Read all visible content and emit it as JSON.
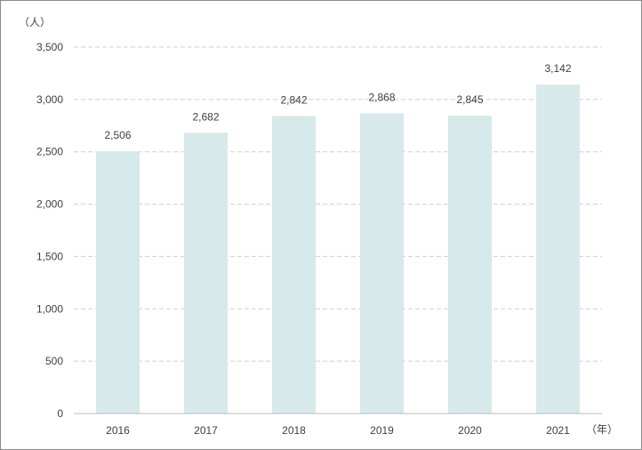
{
  "chart_data": {
    "type": "bar",
    "categories": [
      "2016",
      "2017",
      "2018",
      "2019",
      "2020",
      "2021"
    ],
    "values": [
      2506,
      2682,
      2842,
      2868,
      2845,
      3142
    ],
    "data_labels": [
      "2,506",
      "2,682",
      "2,842",
      "2,868",
      "2,845",
      "3,142"
    ],
    "ylim": [
      0,
      3500
    ],
    "y_ticks": [
      0,
      500,
      1000,
      1500,
      2000,
      2500,
      3000,
      3500
    ],
    "y_tick_labels": [
      "0",
      "500",
      "1,000",
      "1,500",
      "2,000",
      "2,500",
      "3,000",
      "3,500"
    ],
    "y_unit": "（人）",
    "x_unit": "（年）",
    "grid": "horizontal-dashed",
    "bar_color": "#d7e9ea",
    "grid_color": "#cfcfcf",
    "axis_color": "#bdbdbd",
    "text_color": "#404040"
  }
}
